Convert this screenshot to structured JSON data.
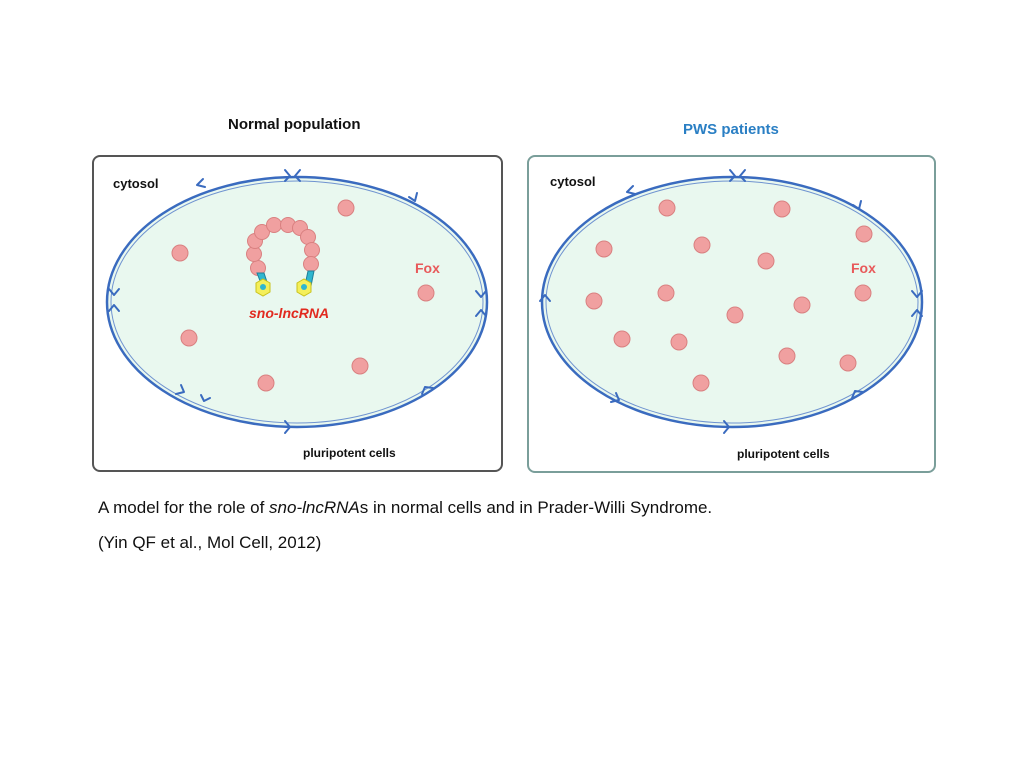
{
  "left_panel": {
    "title": "Normal population",
    "cytosol_label": "cytosol",
    "fox_label": "Fox",
    "sno_label": "sno-lncRNA",
    "cells_label": "pluripotent cells"
  },
  "right_panel": {
    "title": "PWS patients",
    "cytosol_label": "cytosol",
    "fox_label": "Fox",
    "cells_label": "pluripotent cells"
  },
  "caption": {
    "prefix": "A model for the role of ",
    "italic_term": "sno-lncRNA",
    "suffix": "s in normal cells and in Prader-Willi Syndrome.",
    "citation": "(Yin QF et al., Mol Cell, 2012)"
  },
  "colors": {
    "cytoplasm_fill": "#e9f8ef",
    "membrane": "#3a6bbf",
    "fox_protein": "#f0a0a0",
    "fox_protein_stroke": "#d98080",
    "sno_loop_bead": "#f0a0a0",
    "snorna_stem": "#2fb6cf",
    "snorna_cap": "#f4ef5a",
    "pws_title": "#2a7fc4",
    "fox_text": "#e8595a",
    "sno_text": "#e12a1f"
  }
}
